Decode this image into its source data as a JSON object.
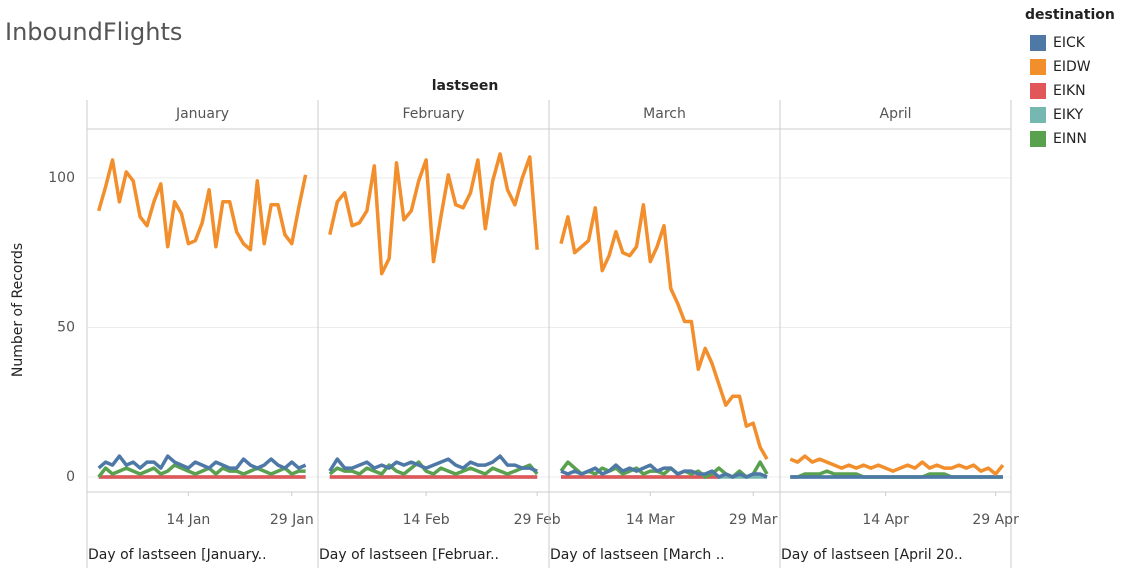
{
  "chart_data": {
    "type": "line",
    "title": "InboundFlights",
    "column_header": "lastseen",
    "y_label": "Number of Records",
    "legend_title": "destination",
    "legend_position": "right",
    "grid": true,
    "ylim": [
      -5,
      116
    ],
    "yticks": [
      0,
      50,
      100
    ],
    "panels": [
      {
        "name": "January",
        "x_label": "Day of lastseen [January..",
        "xlim": [
          -0.7,
          32.8
        ],
        "xticks": [
          {
            "value": 14,
            "label": "14 Jan"
          },
          {
            "value": 29,
            "label": "29 Jan"
          }
        ],
        "x": [
          1,
          2,
          3,
          4,
          5,
          6,
          7,
          8,
          9,
          10,
          11,
          12,
          13,
          14,
          15,
          16,
          17,
          18,
          19,
          20,
          21,
          22,
          23,
          24,
          25,
          26,
          27,
          28,
          29,
          30,
          31
        ]
      },
      {
        "name": "February",
        "x_label": "Day of lastseen [Februar..",
        "xlim": [
          -0.6,
          30.6
        ],
        "xticks": [
          {
            "value": 14,
            "label": "14 Feb"
          },
          {
            "value": 29,
            "label": "29 Feb"
          }
        ],
        "x": [
          1,
          2,
          3,
          4,
          5,
          6,
          7,
          8,
          9,
          10,
          11,
          12,
          13,
          14,
          15,
          16,
          17,
          18,
          19,
          20,
          21,
          22,
          23,
          24,
          25,
          26,
          27,
          28,
          29
        ]
      },
      {
        "name": "March",
        "x_label": "Day of lastseen [March ..",
        "xlim": [
          -0.75,
          32.9
        ],
        "xticks": [
          {
            "value": 14,
            "label": "14 Mar"
          },
          {
            "value": 29,
            "label": "29 Mar"
          }
        ],
        "x": [
          1,
          2,
          3,
          4,
          5,
          6,
          7,
          8,
          9,
          10,
          11,
          12,
          13,
          14,
          15,
          16,
          17,
          18,
          19,
          20,
          21,
          22,
          23,
          24,
          25,
          26,
          27,
          28,
          29,
          30,
          31
        ]
      },
      {
        "name": "April",
        "x_label": "Day of lastseen [April 20..",
        "xlim": [
          -0.4,
          31.1
        ],
        "xticks": [
          {
            "value": 14,
            "label": "14 Apr"
          },
          {
            "value": 29,
            "label": "29 Apr"
          }
        ],
        "x": [
          1,
          2,
          3,
          4,
          5,
          6,
          7,
          8,
          9,
          10,
          11,
          12,
          13,
          14,
          15,
          16,
          17,
          18,
          19,
          20,
          21,
          22,
          23,
          24,
          25,
          26,
          27,
          28,
          29,
          30
        ]
      }
    ],
    "series": [
      {
        "name": "EICK",
        "color": "#4e79a7",
        "values": [
          [
            3,
            5,
            4,
            7,
            4,
            5,
            3,
            5,
            5,
            3,
            7,
            5,
            4,
            3,
            5,
            4,
            3,
            5,
            4,
            3,
            3,
            6,
            4,
            3,
            4,
            6,
            4,
            3,
            5,
            3,
            4
          ],
          [
            2,
            6,
            3,
            3,
            4,
            5,
            3,
            4,
            3,
            5,
            4,
            5,
            4,
            3,
            4,
            5,
            6,
            4,
            3,
            5,
            4,
            4,
            5,
            7,
            4,
            4,
            3,
            3,
            2
          ],
          [
            2,
            1,
            2,
            1,
            2,
            3,
            1,
            2,
            4,
            2,
            3,
            2,
            3,
            4,
            2,
            3,
            3,
            1,
            2,
            2,
            1,
            1,
            2,
            0,
            1,
            0,
            1,
            0,
            1,
            1,
            0
          ],
          [
            0,
            0,
            0,
            0,
            0,
            0,
            0,
            0,
            0,
            0,
            0,
            0,
            0,
            0,
            0,
            0,
            0,
            0,
            0,
            0,
            0,
            0,
            0,
            0,
            0,
            0,
            0,
            0,
            0,
            0
          ]
        ]
      },
      {
        "name": "EIDW",
        "color": "#f28e2b",
        "values": [
          [
            89,
            97,
            106,
            92,
            102,
            99,
            87,
            84,
            92,
            98,
            77,
            92,
            88,
            78,
            79,
            85,
            96,
            77,
            92,
            92,
            82,
            78,
            76,
            99,
            78,
            91,
            91,
            81,
            78,
            90,
            101
          ],
          [
            81,
            92,
            95,
            84,
            85,
            89,
            104,
            68,
            73,
            105,
            86,
            89,
            99,
            106,
            72,
            87,
            101,
            91,
            90,
            95,
            106,
            83,
            99,
            108,
            96,
            91,
            100,
            107,
            76
          ],
          [
            78,
            87,
            75,
            77,
            79,
            90,
            69,
            74,
            82,
            75,
            74,
            77,
            91,
            72,
            77,
            84,
            63,
            58,
            52,
            52,
            36,
            43,
            38,
            31,
            24,
            27,
            27,
            17,
            18,
            10,
            6
          ],
          [
            6,
            5,
            7,
            5,
            6,
            5,
            4,
            3,
            4,
            3,
            4,
            3,
            4,
            3,
            2,
            3,
            4,
            3,
            5,
            3,
            4,
            3,
            3,
            4,
            3,
            4,
            2,
            3,
            1,
            4
          ]
        ]
      },
      {
        "name": "EIKN",
        "color": "#e15759",
        "values": [
          [
            0,
            0,
            0,
            0,
            0,
            0,
            0,
            0,
            0,
            0,
            0,
            0,
            0,
            0,
            0,
            0,
            0,
            0,
            0,
            0,
            0,
            0,
            0,
            0,
            0,
            0,
            0,
            0,
            0,
            0,
            0
          ],
          [
            0,
            0,
            0,
            0,
            0,
            0,
            0,
            0,
            0,
            0,
            0,
            0,
            0,
            0,
            0,
            0,
            0,
            0,
            0,
            0,
            0,
            0,
            0,
            0,
            0,
            0,
            0,
            0,
            0
          ],
          [
            0,
            0,
            0,
            0,
            0,
            0,
            0,
            0,
            0,
            0,
            0,
            0,
            0,
            0,
            0,
            0,
            0,
            0,
            0,
            0,
            0,
            0,
            0,
            0,
            null,
            null,
            null,
            null,
            null,
            null,
            null
          ],
          [
            null,
            null,
            null,
            null,
            null,
            null,
            null,
            null,
            null,
            null,
            null,
            null,
            null,
            null,
            null,
            null,
            null,
            null,
            null,
            null,
            null,
            null,
            null,
            null,
            null,
            null,
            null,
            null,
            null,
            null
          ]
        ]
      },
      {
        "name": "EIKY",
        "color": "#76b7b2",
        "values": [
          [
            0,
            0,
            0,
            0,
            0,
            0,
            0,
            0,
            0,
            0,
            0,
            0,
            0,
            0,
            0,
            0,
            0,
            0,
            0,
            0,
            0,
            0,
            0,
            0,
            0,
            0,
            0,
            0,
            0,
            0,
            0
          ],
          [
            0,
            0,
            0,
            0,
            0,
            0,
            0,
            0,
            0,
            0,
            0,
            0,
            0,
            0,
            0,
            0,
            0,
            0,
            0,
            0,
            0,
            0,
            0,
            0,
            0,
            0,
            0,
            0,
            0
          ],
          [
            0,
            0,
            0,
            0,
            0,
            0,
            0,
            0,
            0,
            0,
            0,
            0,
            0,
            0,
            0,
            0,
            0,
            0,
            0,
            0,
            0,
            0,
            0,
            0,
            0,
            0,
            0,
            0,
            0,
            0,
            0
          ],
          [
            0,
            0,
            0,
            0,
            0,
            0,
            0,
            0,
            0,
            0,
            0,
            0,
            0,
            0,
            0,
            0,
            0,
            0,
            0,
            0,
            0,
            0,
            0,
            0,
            0,
            0,
            0,
            0,
            0,
            0
          ]
        ]
      },
      {
        "name": "EINN",
        "color": "#59a14f",
        "values": [
          [
            0,
            3,
            1,
            2,
            3,
            2,
            1,
            2,
            3,
            1,
            2,
            4,
            3,
            2,
            1,
            2,
            3,
            1,
            3,
            2,
            2,
            1,
            2,
            3,
            2,
            1,
            2,
            3,
            1,
            2,
            2
          ],
          [
            1,
            3,
            2,
            2,
            1,
            3,
            2,
            1,
            4,
            2,
            1,
            3,
            5,
            2,
            1,
            3,
            2,
            1,
            2,
            3,
            2,
            1,
            3,
            2,
            1,
            2,
            3,
            4,
            1
          ],
          [
            2,
            5,
            3,
            1,
            2,
            1,
            3,
            2,
            3,
            1,
            2,
            3,
            1,
            2,
            2,
            1,
            3,
            1,
            2,
            1,
            2,
            0,
            1,
            3,
            1,
            0,
            2,
            0,
            1,
            5,
            1
          ],
          [
            0,
            0,
            1,
            1,
            1,
            2,
            1,
            1,
            1,
            1,
            0,
            0,
            0,
            0,
            0,
            0,
            0,
            0,
            0,
            1,
            1,
            1,
            0,
            0,
            0,
            0,
            0,
            0,
            0,
            0
          ]
        ]
      }
    ],
    "draw_order": [
      3,
      2,
      4,
      0,
      1
    ]
  }
}
